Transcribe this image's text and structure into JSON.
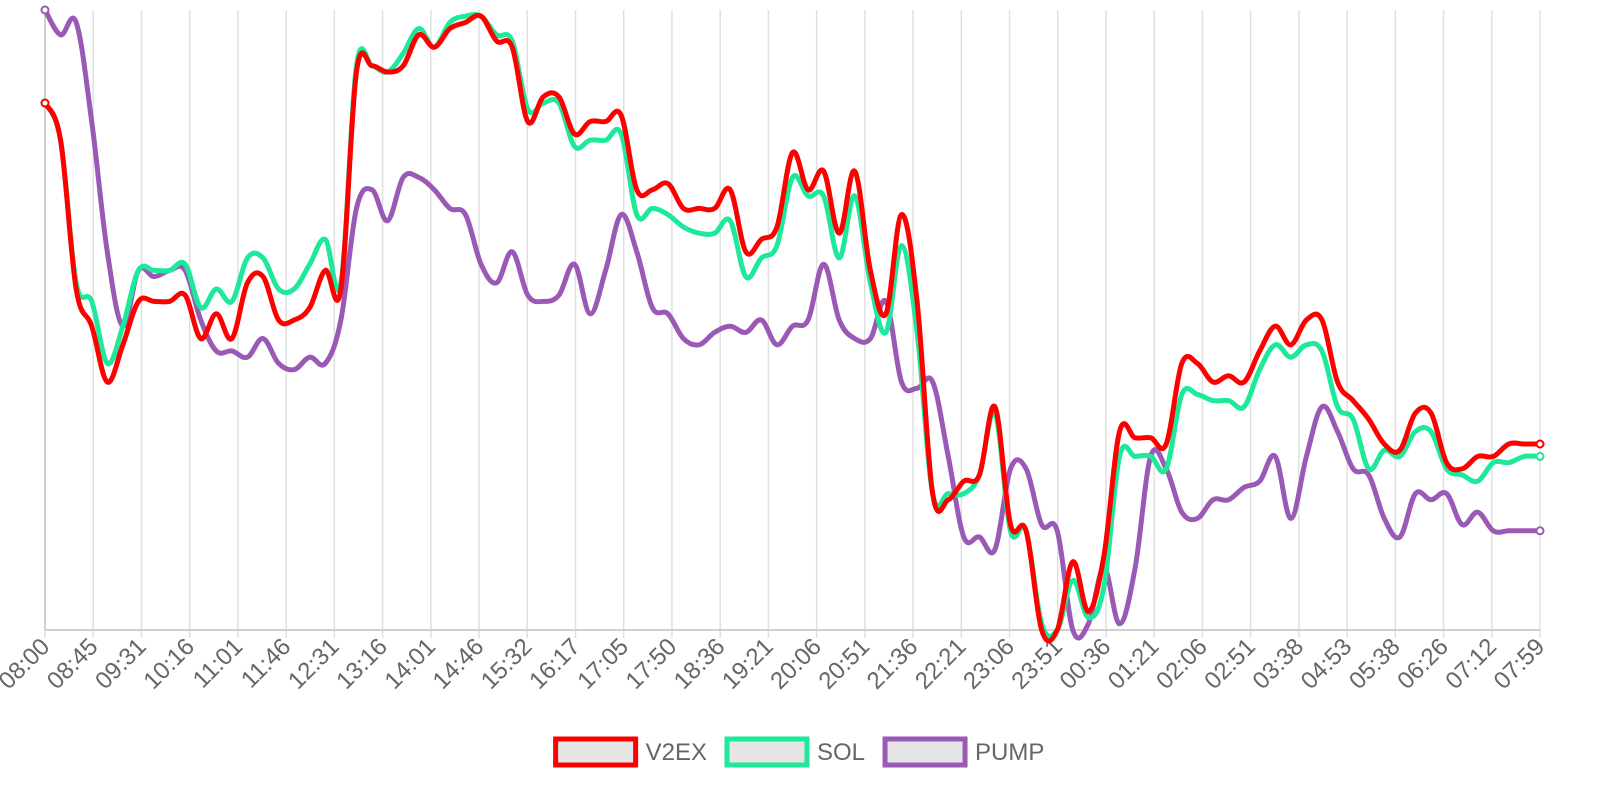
{
  "chart_data": {
    "type": "line",
    "title": "",
    "xlabel": "",
    "ylabel": "",
    "grid": {
      "vertical": true,
      "horizontal": false
    },
    "legend_position": "bottom",
    "y_axis_visible": false,
    "ylim": [
      0,
      100
    ],
    "x_ticks": [
      "08:00",
      "08:45",
      "09:31",
      "10:16",
      "11:01",
      "11:46",
      "12:31",
      "13:16",
      "14:01",
      "14:46",
      "15:32",
      "16:17",
      "17:05",
      "17:50",
      "18:36",
      "19:21",
      "20:06",
      "20:51",
      "21:36",
      "22:21",
      "23:06",
      "23:51",
      "00:36",
      "01:21",
      "02:06",
      "02:51",
      "03:38",
      "04:53",
      "05:38",
      "06:26",
      "07:12",
      "07:59"
    ],
    "x_count": 97,
    "series": [
      {
        "name": "V2EX",
        "color": "#ff0000",
        "values": [
          85,
          79,
          55,
          49,
          40,
          46,
          53,
          53,
          53,
          54,
          47,
          51,
          47,
          56,
          57,
          50,
          50,
          52,
          58,
          55,
          90,
          91,
          90,
          91,
          96,
          94,
          97,
          98,
          99,
          95,
          94,
          82,
          86,
          86,
          80,
          82,
          82,
          83,
          71,
          71,
          72,
          68,
          68,
          68,
          71,
          61,
          63,
          65,
          77,
          71,
          74,
          64,
          74,
          58,
          51,
          67,
          53,
          22,
          21,
          24,
          25,
          36,
          17,
          16,
          0,
          0,
          11,
          3,
          12,
          32,
          31,
          31,
          30,
          43,
          43,
          40,
          41,
          40,
          45,
          49,
          46,
          50,
          50,
          40,
          37,
          34,
          30,
          29,
          35,
          35,
          27,
          26,
          28,
          28,
          30,
          30,
          30
        ]
      },
      {
        "name": "SOL",
        "color": "#1ee89a",
        "values": [
          85,
          79,
          56,
          53,
          43,
          49,
          58,
          58,
          58,
          59,
          52,
          55,
          53,
          60,
          60,
          55,
          55,
          59,
          63,
          56,
          91,
          91,
          90,
          93,
          97,
          94,
          98,
          99,
          99,
          96,
          95,
          84,
          85,
          85,
          78,
          79,
          79,
          80,
          67,
          68,
          67,
          65,
          64,
          64,
          66,
          57,
          60,
          62,
          73,
          70,
          70,
          60,
          70,
          56,
          48,
          62,
          48,
          22,
          22,
          22,
          25,
          35,
          16,
          16,
          1,
          0,
          8,
          2,
          7,
          28,
          28,
          28,
          26,
          38,
          38,
          37,
          37,
          36,
          42,
          46,
          44,
          46,
          45,
          36,
          34,
          26,
          29,
          28,
          32,
          32,
          26,
          25,
          24,
          27,
          27,
          28,
          28
        ]
      },
      {
        "name": "PUMP",
        "color": "#9b59b6",
        "values": [
          100,
          96,
          98,
          82,
          61,
          49,
          58,
          57,
          58,
          58,
          50,
          45,
          45,
          44,
          47,
          43,
          42,
          44,
          43,
          50,
          68,
          71,
          66,
          73,
          73,
          71,
          68,
          67,
          59,
          56,
          61,
          54,
          53,
          54,
          59,
          51,
          58,
          67,
          61,
          52,
          51,
          47,
          46,
          48,
          49,
          48,
          50,
          46,
          49,
          50,
          59,
          50,
          47,
          47,
          53,
          40,
          39,
          40,
          28,
          15,
          15,
          13,
          26,
          26,
          17,
          16,
          0,
          1,
          10,
          1,
          10,
          28,
          26,
          19,
          18,
          21,
          21,
          23,
          24,
          28,
          18,
          28,
          36,
          32,
          26,
          25,
          18,
          15,
          22,
          21,
          22,
          17,
          19,
          16,
          16,
          16,
          16
        ]
      }
    ]
  }
}
